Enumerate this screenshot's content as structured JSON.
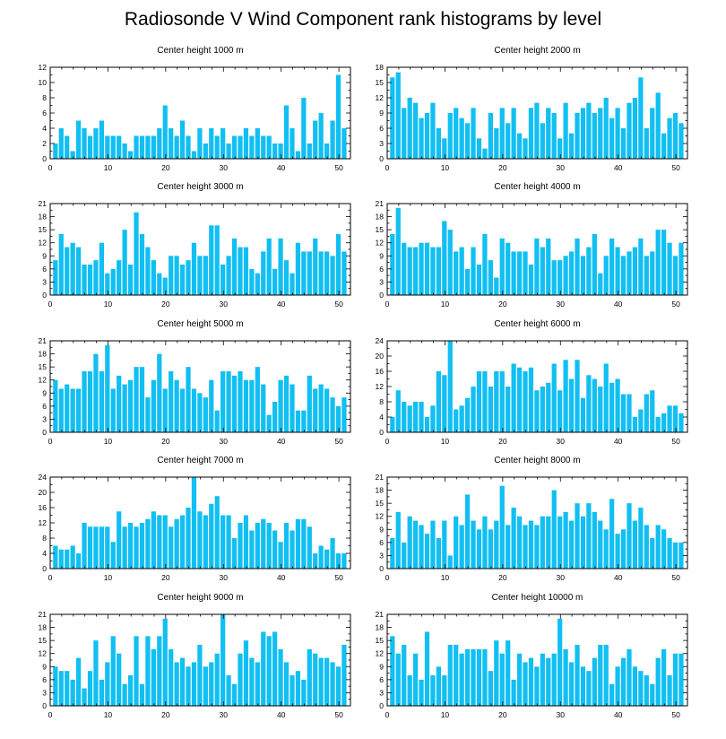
{
  "title": "Radiosonde V Wind Component rank histograms by level",
  "bar_color": "#11bff2",
  "chart_data": [
    {
      "type": "bar",
      "title": "Center height 1000 m",
      "xlim": [
        0,
        52
      ],
      "ylim": [
        0,
        12
      ],
      "yticks": [
        0,
        2,
        4,
        6,
        8,
        10,
        12
      ],
      "values": [
        2,
        4,
        3,
        1,
        5,
        4,
        3,
        4,
        5,
        3,
        3,
        3,
        2,
        1,
        3,
        3,
        3,
        3,
        4,
        7,
        4,
        3,
        5,
        3,
        1,
        4,
        2,
        4,
        3,
        4,
        2,
        3,
        3,
        4,
        3,
        4,
        3,
        3,
        2,
        2,
        7,
        4,
        1,
        8,
        2,
        5,
        6,
        2,
        5,
        11,
        4
      ]
    },
    {
      "type": "bar",
      "title": "Center height 2000 m",
      "xlim": [
        0,
        52
      ],
      "ylim": [
        0,
        18
      ],
      "yticks": [
        0,
        3,
        6,
        9,
        12,
        15,
        18
      ],
      "values": [
        16,
        17,
        10,
        12,
        11,
        8,
        9,
        11,
        6,
        4,
        9,
        10,
        8,
        7,
        10,
        4,
        2,
        9,
        6,
        10,
        7,
        10,
        5,
        4,
        10,
        11,
        7,
        10,
        9,
        4,
        11,
        5,
        9,
        10,
        11,
        9,
        10,
        12,
        8,
        10,
        6,
        11,
        12,
        16,
        6,
        10,
        13,
        5,
        8,
        9,
        7
      ]
    },
    {
      "type": "bar",
      "title": "Center height 3000 m",
      "xlim": [
        0,
        52
      ],
      "ylim": [
        0,
        21
      ],
      "yticks": [
        0,
        3,
        6,
        9,
        12,
        15,
        18,
        21
      ],
      "values": [
        8,
        14,
        11,
        12,
        11,
        7,
        7,
        8,
        12,
        5,
        6,
        8,
        15,
        7,
        19,
        14,
        11,
        8,
        5,
        4,
        9,
        9,
        7,
        8,
        12,
        9,
        9,
        16,
        16,
        7,
        9,
        13,
        11,
        11,
        6,
        5,
        10,
        13,
        6,
        13,
        8,
        5,
        12,
        10,
        10,
        13,
        10,
        10,
        9,
        14,
        10
      ]
    },
    {
      "type": "bar",
      "title": "Center height 4000 m",
      "xlim": [
        0,
        52
      ],
      "ylim": [
        0,
        21
      ],
      "yticks": [
        0,
        3,
        6,
        9,
        12,
        15,
        18,
        21
      ],
      "values": [
        14,
        20,
        12,
        11,
        11,
        12,
        12,
        11,
        11,
        17,
        15,
        10,
        11,
        6,
        11,
        7,
        14,
        8,
        4,
        13,
        12,
        10,
        10,
        10,
        7,
        13,
        11,
        13,
        8,
        8,
        9,
        10,
        13,
        9,
        11,
        14,
        5,
        9,
        13,
        11,
        9,
        10,
        11,
        13,
        9,
        10,
        15,
        15,
        12,
        9,
        12
      ]
    },
    {
      "type": "bar",
      "title": "Center height 5000 m",
      "xlim": [
        0,
        52
      ],
      "ylim": [
        0,
        21
      ],
      "yticks": [
        0,
        3,
        6,
        9,
        12,
        15,
        18,
        21
      ],
      "values": [
        12,
        10,
        11,
        10,
        10,
        14,
        14,
        18,
        14,
        20,
        10,
        13,
        11,
        12,
        15,
        15,
        8,
        12,
        18,
        10,
        14,
        12,
        10,
        15,
        10,
        9,
        8,
        12,
        5,
        14,
        14,
        13,
        14,
        12,
        12,
        15,
        11,
        4,
        7,
        12,
        13,
        11,
        5,
        5,
        13,
        10,
        11,
        10,
        8,
        6,
        8
      ]
    },
    {
      "type": "bar",
      "title": "Center height 6000 m",
      "xlim": [
        0,
        52
      ],
      "ylim": [
        0,
        24
      ],
      "yticks": [
        0,
        4,
        8,
        12,
        16,
        20,
        24
      ],
      "values": [
        4,
        11,
        8,
        7,
        8,
        8,
        4,
        7,
        16,
        15,
        24,
        6,
        7,
        9,
        12,
        16,
        16,
        12,
        16,
        16,
        12,
        18,
        17,
        16,
        17,
        11,
        12,
        13,
        18,
        11,
        19,
        14,
        19,
        9,
        15,
        14,
        12,
        18,
        13,
        14,
        10,
        10,
        4,
        6,
        10,
        11,
        4,
        5,
        7,
        7,
        5
      ]
    },
    {
      "type": "bar",
      "title": "Center height 7000 m",
      "xlim": [
        0,
        52
      ],
      "ylim": [
        0,
        24
      ],
      "yticks": [
        0,
        4,
        8,
        12,
        16,
        20,
        24
      ],
      "values": [
        6,
        5,
        5,
        6,
        4,
        12,
        11,
        11,
        11,
        11,
        7,
        15,
        11,
        12,
        11,
        12,
        13,
        15,
        14,
        14,
        11,
        13,
        14,
        16,
        24,
        15,
        14,
        17,
        19,
        14,
        14,
        8,
        12,
        14,
        10,
        12,
        13,
        12,
        10,
        7,
        12,
        10,
        13,
        13,
        11,
        4,
        6,
        5,
        8,
        4,
        4
      ]
    },
    {
      "type": "bar",
      "title": "Center height 8000 m",
      "xlim": [
        0,
        52
      ],
      "ylim": [
        0,
        21
      ],
      "yticks": [
        0,
        3,
        6,
        9,
        12,
        15,
        18,
        21
      ],
      "values": [
        7,
        13,
        6,
        12,
        11,
        10,
        8,
        11,
        7,
        11,
        3,
        12,
        10,
        17,
        11,
        9,
        12,
        9,
        11,
        19,
        10,
        14,
        12,
        10,
        11,
        10,
        12,
        12,
        18,
        12,
        13,
        11,
        15,
        12,
        15,
        13,
        11,
        9,
        16,
        8,
        9,
        15,
        11,
        14,
        10,
        7,
        10,
        9,
        7,
        6,
        6
      ]
    },
    {
      "type": "bar",
      "title": "Center height 9000 m",
      "xlim": [
        0,
        52
      ],
      "ylim": [
        0,
        21
      ],
      "yticks": [
        0,
        3,
        6,
        9,
        12,
        15,
        18,
        21
      ],
      "values": [
        9,
        8,
        8,
        6,
        11,
        4,
        8,
        15,
        6,
        10,
        16,
        12,
        5,
        7,
        16,
        5,
        16,
        13,
        16,
        20,
        13,
        10,
        11,
        9,
        10,
        14,
        9,
        10,
        12,
        21,
        7,
        5,
        12,
        15,
        11,
        10,
        17,
        16,
        17,
        13,
        10,
        7,
        8,
        6,
        13,
        12,
        11,
        11,
        10,
        9,
        14
      ]
    },
    {
      "type": "bar",
      "title": "Center height 10000 m",
      "xlim": [
        0,
        52
      ],
      "ylim": [
        0,
        21
      ],
      "yticks": [
        0,
        3,
        6,
        9,
        12,
        15,
        18,
        21
      ],
      "values": [
        16,
        12,
        14,
        7,
        12,
        6,
        17,
        7,
        9,
        7,
        14,
        14,
        12,
        13,
        13,
        13,
        13,
        8,
        15,
        12,
        15,
        6,
        12,
        10,
        11,
        9,
        12,
        11,
        12,
        20,
        13,
        10,
        14,
        9,
        8,
        11,
        14,
        14,
        5,
        9,
        11,
        13,
        9,
        8,
        7,
        5,
        11,
        13,
        7,
        12,
        12
      ]
    }
  ]
}
